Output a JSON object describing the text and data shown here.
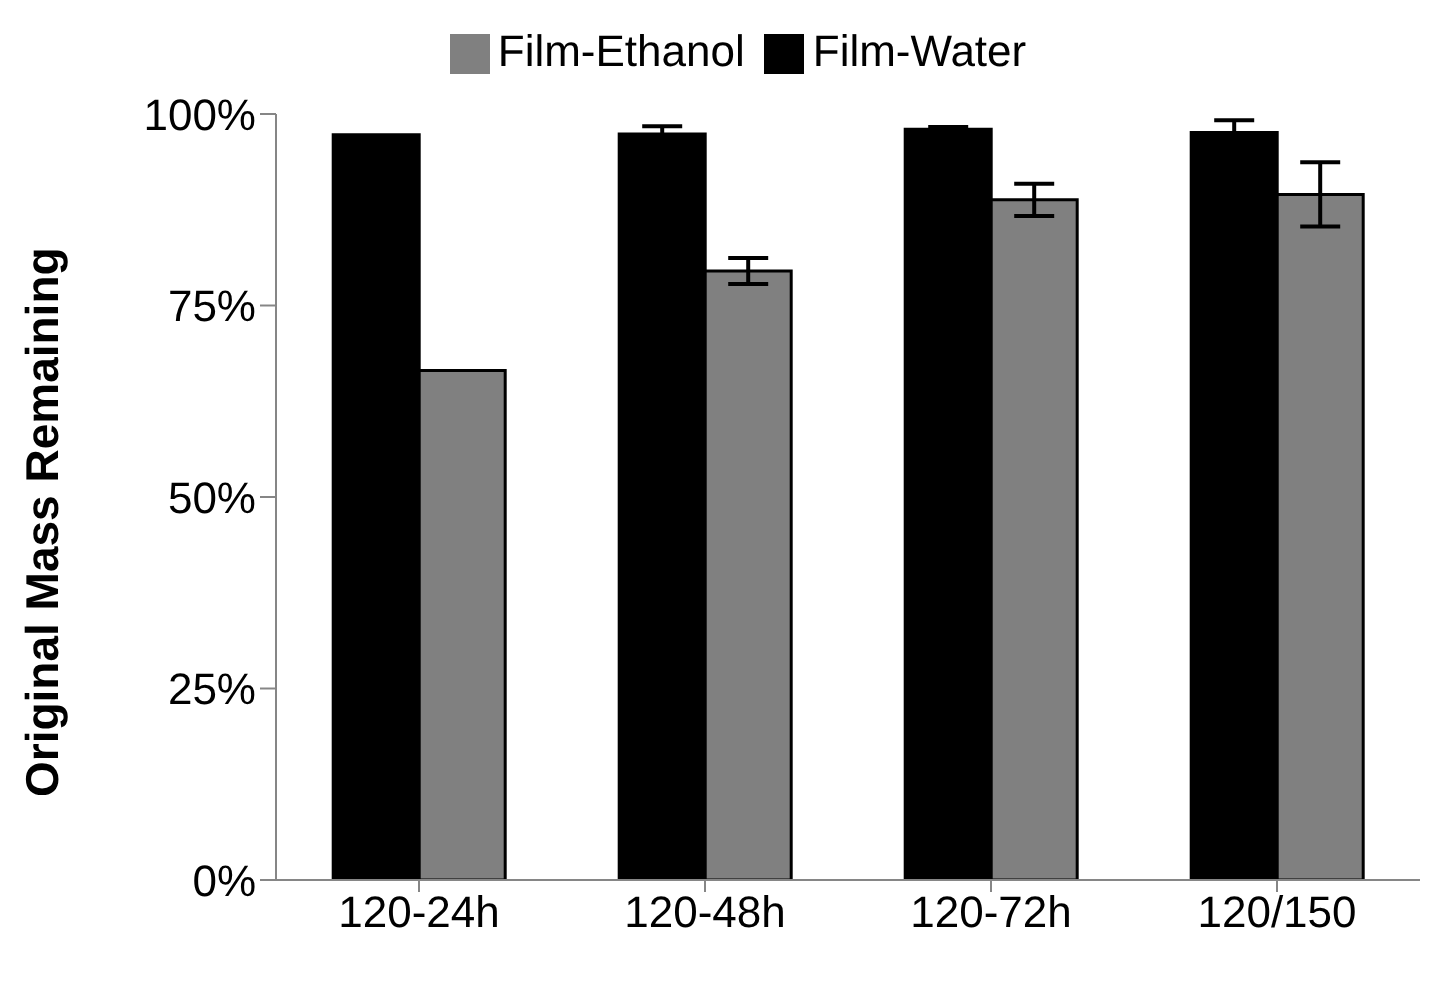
{
  "chart_data": {
    "type": "bar",
    "ylabel": "Original Mass Remaining",
    "categories": [
      "120-24h",
      "120-48h",
      "120-72h",
      "120/150"
    ],
    "series": [
      {
        "name": "Film-Water",
        "color": "#000000",
        "values": [
          97.3,
          97.4,
          98.0,
          97.6
        ],
        "errors": [
          null,
          1.0,
          0.3,
          1.6
        ]
      },
      {
        "name": "Film-Ethanol",
        "color": "#808080",
        "values": [
          66.5,
          79.5,
          88.8,
          89.5
        ],
        "errors": [
          null,
          1.7,
          2.1,
          4.2
        ]
      }
    ],
    "ylim": [
      0,
      100
    ],
    "yticks": [
      {
        "value": 0,
        "label": "0%"
      },
      {
        "value": 25,
        "label": "25%"
      },
      {
        "value": 50,
        "label": "50%"
      },
      {
        "value": 75,
        "label": "75%"
      },
      {
        "value": 100,
        "label": "100%"
      }
    ],
    "grid": false,
    "legend": "top"
  }
}
